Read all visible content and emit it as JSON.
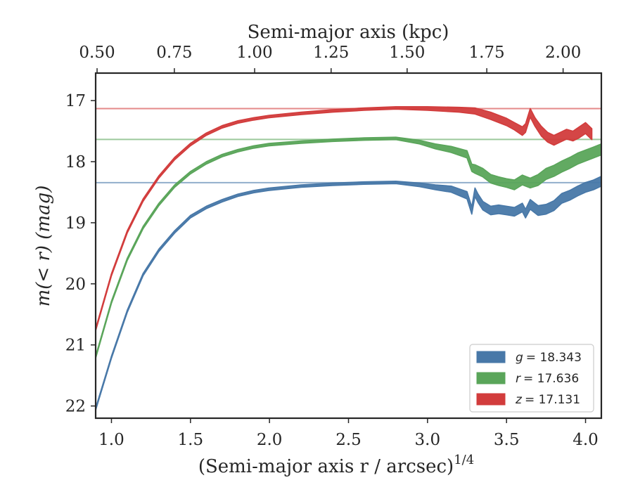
{
  "chart_data": {
    "type": "area",
    "xlabel": "(Semi-major axis r / arcsec)",
    "xlabel_superscript": "1/4",
    "x2label": "Semi-major axis (kpc)",
    "ylabel": "m(< r) (mag)",
    "xlim": [
      0.9,
      4.1
    ],
    "ylim": [
      22.2,
      16.55
    ],
    "y_inverted": true,
    "x_ticks": [
      "1.0",
      "1.5",
      "2.0",
      "2.5",
      "3.0",
      "3.5",
      "4.0"
    ],
    "x_tick_values": [
      1.0,
      1.5,
      2.0,
      2.5,
      3.0,
      3.5,
      4.0
    ],
    "y_ticks": [
      "17",
      "18",
      "19",
      "20",
      "21",
      "22"
    ],
    "y_tick_values": [
      17,
      18,
      19,
      20,
      21,
      22
    ],
    "top_ticks": [
      "0.50",
      "0.75",
      "1.00",
      "1.25",
      "1.50",
      "1.75",
      "2.00"
    ],
    "top_tick_at_x": [
      0.909,
      1.398,
      1.906,
      2.39,
      2.871,
      3.375,
      3.858
    ],
    "legend_position": "lower-right",
    "series": [
      {
        "name": "g = 18.343",
        "legend_var": "g",
        "legend_value": "= 18.343",
        "color": "#4878a8",
        "asymptote": 18.343,
        "x": [
          0.9,
          1.0,
          1.1,
          1.2,
          1.3,
          1.4,
          1.5,
          1.6,
          1.7,
          1.8,
          1.9,
          2.0,
          2.2,
          2.4,
          2.6,
          2.8,
          2.95,
          3.05,
          3.15,
          3.25,
          3.28,
          3.3,
          3.32,
          3.35,
          3.4,
          3.45,
          3.5,
          3.55,
          3.6,
          3.62,
          3.65,
          3.7,
          3.75,
          3.8,
          3.85,
          3.9,
          3.95,
          4.0,
          4.05,
          4.1
        ],
        "y": [
          22.05,
          21.2,
          20.45,
          19.85,
          19.45,
          19.15,
          18.9,
          18.75,
          18.64,
          18.55,
          18.49,
          18.45,
          18.4,
          18.37,
          18.35,
          18.34,
          18.38,
          18.42,
          18.45,
          18.55,
          18.8,
          18.5,
          18.6,
          18.72,
          18.8,
          18.78,
          18.8,
          18.82,
          18.75,
          18.85,
          18.7,
          18.8,
          18.78,
          18.72,
          18.6,
          18.55,
          18.48,
          18.42,
          18.38,
          18.32
        ],
        "band": [
          0.02,
          0.02,
          0.02,
          0.02,
          0.02,
          0.02,
          0.02,
          0.02,
          0.02,
          0.02,
          0.02,
          0.02,
          0.02,
          0.02,
          0.02,
          0.02,
          0.03,
          0.04,
          0.05,
          0.06,
          0.06,
          0.07,
          0.07,
          0.07,
          0.07,
          0.07,
          0.07,
          0.07,
          0.07,
          0.07,
          0.08,
          0.08,
          0.08,
          0.08,
          0.08,
          0.08,
          0.08,
          0.08,
          0.08,
          0.08
        ]
      },
      {
        "name": "r = 17.636",
        "legend_var": "r",
        "legend_value": "= 17.636",
        "color": "#5aa55a",
        "asymptote": 17.636,
        "x": [
          0.9,
          1.0,
          1.1,
          1.2,
          1.3,
          1.4,
          1.5,
          1.6,
          1.7,
          1.8,
          1.9,
          2.0,
          2.2,
          2.4,
          2.6,
          2.8,
          2.95,
          3.05,
          3.15,
          3.25,
          3.28,
          3.3,
          3.35,
          3.4,
          3.45,
          3.5,
          3.55,
          3.6,
          3.65,
          3.7,
          3.75,
          3.8,
          3.85,
          3.9,
          3.95,
          4.0,
          4.05,
          4.1
        ],
        "y": [
          21.2,
          20.3,
          19.6,
          19.08,
          18.7,
          18.4,
          18.18,
          18.02,
          17.9,
          17.82,
          17.76,
          17.72,
          17.68,
          17.65,
          17.63,
          17.62,
          17.68,
          17.75,
          17.8,
          17.88,
          18.1,
          18.12,
          18.18,
          18.28,
          18.32,
          18.35,
          18.38,
          18.3,
          18.35,
          18.3,
          18.2,
          18.15,
          18.08,
          18.02,
          17.95,
          17.9,
          17.85,
          17.8
        ],
        "band": [
          0.02,
          0.02,
          0.02,
          0.02,
          0.02,
          0.02,
          0.02,
          0.02,
          0.02,
          0.02,
          0.02,
          0.02,
          0.02,
          0.02,
          0.02,
          0.02,
          0.03,
          0.04,
          0.05,
          0.06,
          0.06,
          0.07,
          0.07,
          0.07,
          0.07,
          0.07,
          0.08,
          0.08,
          0.08,
          0.09,
          0.09,
          0.09,
          0.09,
          0.09,
          0.09,
          0.09,
          0.09,
          0.09
        ]
      },
      {
        "name": "z = 17.131",
        "legend_var": "z",
        "legend_value": "= 17.131",
        "color": "#d23c3c",
        "asymptote": 17.131,
        "x": [
          0.9,
          1.0,
          1.1,
          1.2,
          1.3,
          1.4,
          1.5,
          1.6,
          1.7,
          1.8,
          1.9,
          2.0,
          2.2,
          2.4,
          2.6,
          2.8,
          3.0,
          3.2,
          3.3,
          3.4,
          3.5,
          3.55,
          3.6,
          3.62,
          3.65,
          3.68,
          3.72,
          3.76,
          3.8,
          3.84,
          3.88,
          3.92,
          3.96,
          4.0,
          4.04
        ],
        "y": [
          20.75,
          19.85,
          19.15,
          18.63,
          18.25,
          17.95,
          17.72,
          17.55,
          17.43,
          17.35,
          17.3,
          17.26,
          17.21,
          17.17,
          17.14,
          17.12,
          17.13,
          17.15,
          17.17,
          17.25,
          17.35,
          17.42,
          17.5,
          17.45,
          17.2,
          17.35,
          17.5,
          17.6,
          17.65,
          17.6,
          17.55,
          17.58,
          17.52,
          17.45,
          17.55
        ],
        "band": [
          0.02,
          0.02,
          0.02,
          0.02,
          0.02,
          0.02,
          0.02,
          0.02,
          0.02,
          0.02,
          0.02,
          0.02,
          0.02,
          0.02,
          0.02,
          0.02,
          0.03,
          0.04,
          0.05,
          0.06,
          0.06,
          0.06,
          0.07,
          0.07,
          0.07,
          0.07,
          0.08,
          0.08,
          0.08,
          0.08,
          0.08,
          0.08,
          0.09,
          0.09,
          0.09
        ]
      }
    ]
  }
}
